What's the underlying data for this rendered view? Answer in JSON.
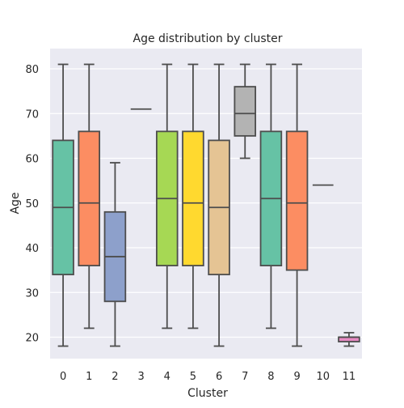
{
  "chart_data": {
    "type": "box",
    "title": "Age distribution by cluster",
    "xlabel": "Cluster",
    "ylabel": "Age",
    "ylim": [
      15,
      84
    ],
    "yticks": [
      20,
      30,
      40,
      50,
      60,
      70,
      80
    ],
    "grid": true,
    "background": "#EAEAF2",
    "categories": [
      "0",
      "1",
      "2",
      "3",
      "4",
      "5",
      "6",
      "7",
      "8",
      "9",
      "10",
      "11"
    ],
    "boxes": [
      {
        "min": 18,
        "q1": 34,
        "median": 49,
        "q3": 64,
        "max": 81,
        "color": "#66C2A5"
      },
      {
        "min": 22,
        "q1": 36,
        "median": 50,
        "q3": 66,
        "max": 81,
        "color": "#FC8D62"
      },
      {
        "min": 18,
        "q1": 28,
        "median": 38,
        "q3": 48,
        "max": 59,
        "color": "#8DA0CB"
      },
      {
        "min": 71,
        "q1": 71,
        "median": 71,
        "q3": 71,
        "max": 71,
        "color": "#E78AC3"
      },
      {
        "min": 22,
        "q1": 36,
        "median": 51,
        "q3": 66,
        "max": 81,
        "color": "#A6D854"
      },
      {
        "min": 22,
        "q1": 36,
        "median": 50,
        "q3": 66,
        "max": 81,
        "color": "#FFD92F"
      },
      {
        "min": 18,
        "q1": 34,
        "median": 49,
        "q3": 64,
        "max": 81,
        "color": "#E5C494"
      },
      {
        "min": 60,
        "q1": 65,
        "median": 70,
        "q3": 76,
        "max": 81,
        "color": "#B3B3B3"
      },
      {
        "min": 22,
        "q1": 36,
        "median": 51,
        "q3": 66,
        "max": 81,
        "color": "#66C2A5"
      },
      {
        "min": 18,
        "q1": 35,
        "median": 50,
        "q3": 66,
        "max": 81,
        "color": "#FC8D62"
      },
      {
        "min": 54,
        "q1": 54,
        "median": 54,
        "q3": 54,
        "max": 54,
        "color": "#8DA0CB"
      },
      {
        "min": 18,
        "q1": 19,
        "median": 20,
        "q3": 20,
        "max": 21,
        "color": "#E78AC3"
      }
    ]
  }
}
